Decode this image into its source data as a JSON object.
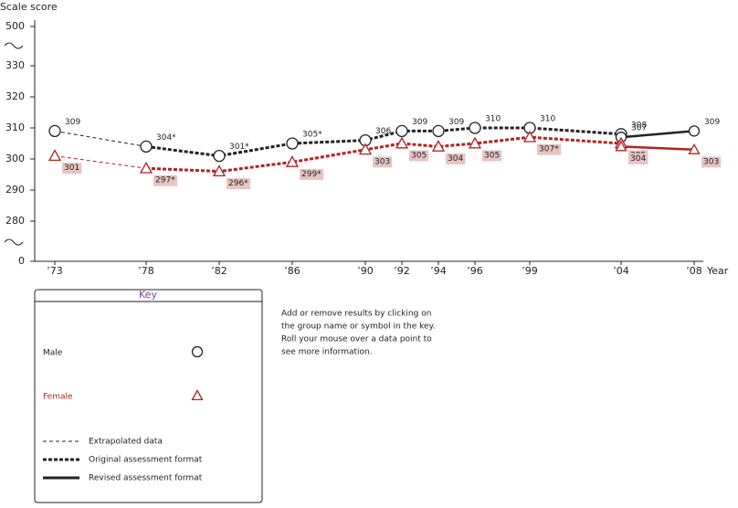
{
  "chart_data": {
    "type": "line",
    "y_label": "Scale score",
    "x_label": "Year",
    "xlim": [
      1972,
      2008
    ],
    "ylim": [
      0,
      500
    ],
    "yticks": [
      0,
      280,
      290,
      300,
      310,
      320,
      330,
      500
    ],
    "xticks": [
      {
        "value": 1973,
        "label": "’73"
      },
      {
        "value": 1978,
        "label": "’78"
      },
      {
        "value": 1982,
        "label": "’82"
      },
      {
        "value": 1986,
        "label": "’86"
      },
      {
        "value": 1990,
        "label": "’90"
      },
      {
        "value": 1992,
        "label": "’92"
      },
      {
        "value": 1994,
        "label": "’94"
      },
      {
        "value": 1996,
        "label": "’96"
      },
      {
        "value": 1999,
        "label": "’99"
      },
      {
        "value": 2004,
        "label": "’04"
      },
      {
        "value": 2008,
        "label": "’08"
      }
    ],
    "series": [
      {
        "name": "Male",
        "color": "#222222",
        "marker": "circle",
        "x": [
          1973,
          1978,
          1982,
          1986,
          1990,
          1992,
          1994,
          1996,
          1999,
          2004
        ],
        "values": [
          309,
          304,
          301,
          305,
          306,
          309,
          309,
          310,
          310,
          308
        ],
        "value_labels": [
          "309",
          "304*",
          "301*",
          "305*",
          "306",
          "309",
          "309",
          "310",
          "310",
          "308"
        ],
        "revised_x": [
          2004,
          2008
        ],
        "revised_values": [
          307,
          309
        ]
      },
      {
        "name": "Female",
        "color": "#b22222",
        "marker": "triangle",
        "x": [
          1973,
          1978,
          1982,
          1986,
          1990,
          1992,
          1994,
          1996,
          1999,
          2004
        ],
        "values": [
          301,
          297,
          296,
          299,
          303,
          305,
          304,
          305,
          307,
          305
        ],
        "value_labels": [
          "301",
          "297*",
          "296*",
          "299*",
          "303",
          "305",
          "304",
          "305",
          "307*",
          "305"
        ],
        "revised_x": [
          2004,
          2008
        ],
        "revised_values": [
          304,
          303
        ]
      }
    ],
    "key": {
      "title": "Key",
      "styles": [
        "Extrapolated data",
        "Original assessment format",
        "Revised assessment format"
      ]
    },
    "note": [
      "Add or remove results by clicking on",
      "the group name or symbol in the key.",
      "Roll your mouse over a data point to",
      "see more information."
    ]
  }
}
